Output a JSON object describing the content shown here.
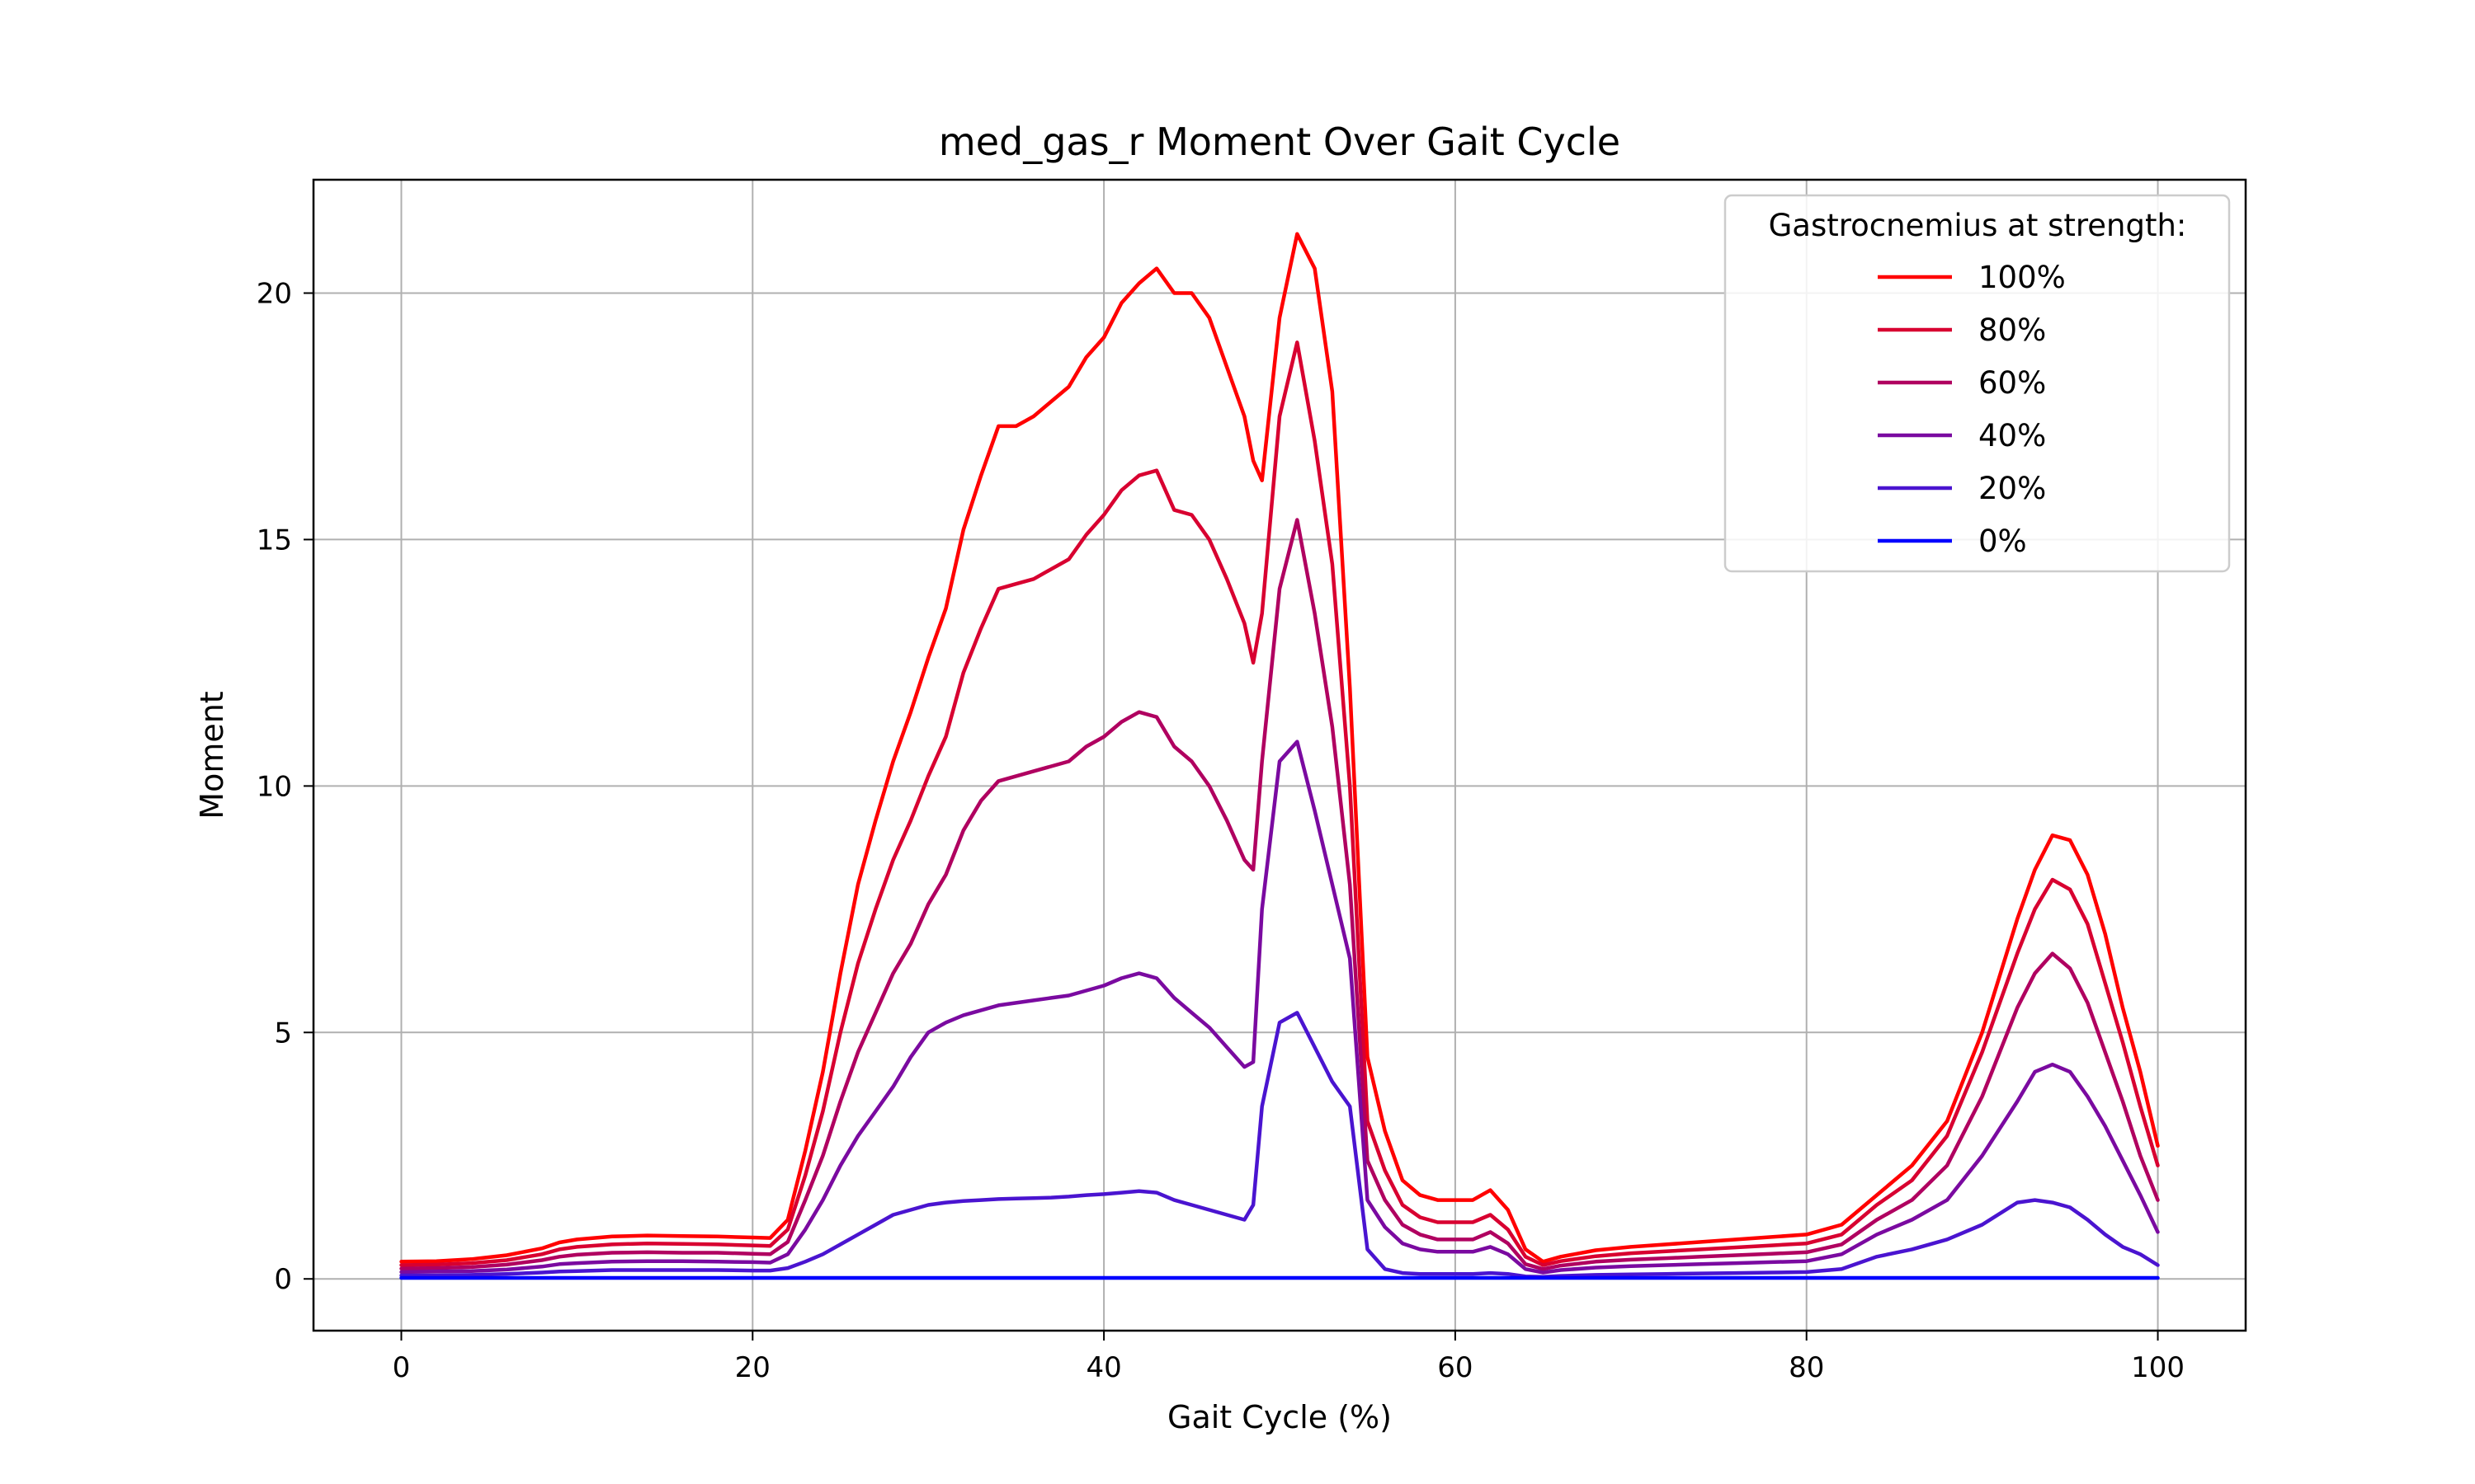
{
  "chart_data": {
    "type": "line",
    "title": "med_gas_r Moment Over Gait Cycle",
    "xlabel": "Gait Cycle (%)",
    "ylabel": "Moment",
    "xlim": [
      -5,
      105
    ],
    "ylim": [
      -1.05,
      22.3
    ],
    "xticks": [
      0,
      20,
      40,
      60,
      80,
      100
    ],
    "yticks": [
      0,
      5,
      10,
      15,
      20
    ],
    "grid": true,
    "legend": {
      "title": "Gastrocnemius at strength:",
      "placement": "top-right"
    },
    "x": [
      0,
      2,
      4,
      6,
      8,
      9,
      10,
      12,
      14,
      16,
      18,
      20,
      21,
      22,
      23,
      24,
      25,
      26,
      27,
      28,
      29,
      30,
      31,
      32,
      33,
      34,
      35,
      36,
      37,
      38,
      39,
      40,
      41,
      42,
      43,
      44,
      45,
      46,
      47,
      48,
      48.5,
      49,
      50,
      51,
      52,
      53,
      54,
      55,
      56,
      57,
      58,
      59,
      60,
      61,
      62,
      63,
      64,
      65,
      66,
      68,
      70,
      72,
      74,
      76,
      78,
      80,
      82,
      84,
      86,
      88,
      90,
      92,
      93,
      94,
      95,
      96,
      97,
      98,
      99,
      100
    ],
    "series": [
      {
        "name": "100%",
        "color": "#ff0000",
        "values": [
          0.35,
          0.36,
          0.4,
          0.48,
          0.62,
          0.74,
          0.8,
          0.86,
          0.88,
          0.87,
          0.86,
          0.84,
          0.83,
          1.2,
          2.6,
          4.2,
          6.2,
          8.0,
          9.3,
          10.5,
          11.5,
          12.6,
          13.6,
          15.2,
          16.3,
          17.3,
          17.3,
          17.5,
          17.8,
          18.1,
          18.7,
          19.1,
          19.8,
          20.2,
          20.5,
          20.0,
          20.0,
          19.5,
          18.5,
          17.5,
          16.6,
          16.2,
          19.5,
          21.2,
          20.5,
          18.0,
          12.0,
          4.5,
          3.0,
          2.0,
          1.7,
          1.6,
          1.6,
          1.6,
          1.8,
          1.4,
          0.6,
          0.35,
          0.45,
          0.58,
          0.65,
          0.7,
          0.75,
          0.8,
          0.85,
          0.9,
          1.1,
          1.7,
          2.3,
          3.2,
          5.0,
          7.3,
          8.3,
          9.0,
          8.9,
          8.2,
          7.0,
          5.5,
          4.2,
          2.7
        ]
      },
      {
        "name": "80%",
        "color": "#d80030",
        "values": [
          0.28,
          0.29,
          0.32,
          0.38,
          0.5,
          0.6,
          0.65,
          0.7,
          0.72,
          0.71,
          0.7,
          0.68,
          0.67,
          1.0,
          2.1,
          3.4,
          5.0,
          6.4,
          7.5,
          8.5,
          9.3,
          10.2,
          11.0,
          12.3,
          13.2,
          14.0,
          14.1,
          14.2,
          14.4,
          14.6,
          15.1,
          15.5,
          16.0,
          16.3,
          16.4,
          15.6,
          15.5,
          15.0,
          14.2,
          13.3,
          12.5,
          13.5,
          17.5,
          19.0,
          17.0,
          14.5,
          10.0,
          3.2,
          2.2,
          1.5,
          1.25,
          1.15,
          1.15,
          1.15,
          1.3,
          1.0,
          0.45,
          0.28,
          0.36,
          0.46,
          0.52,
          0.56,
          0.6,
          0.64,
          0.68,
          0.72,
          0.9,
          1.5,
          2.0,
          2.9,
          4.6,
          6.6,
          7.5,
          8.1,
          7.9,
          7.2,
          6.0,
          4.8,
          3.5,
          2.3
        ]
      },
      {
        "name": "60%",
        "color": "#b00060",
        "values": [
          0.21,
          0.22,
          0.24,
          0.29,
          0.38,
          0.45,
          0.49,
          0.53,
          0.54,
          0.53,
          0.53,
          0.51,
          0.5,
          0.75,
          1.6,
          2.5,
          3.6,
          4.6,
          5.4,
          6.2,
          6.8,
          7.6,
          8.2,
          9.1,
          9.7,
          10.1,
          10.2,
          10.3,
          10.4,
          10.5,
          10.8,
          11.0,
          11.3,
          11.5,
          11.4,
          10.8,
          10.5,
          10.0,
          9.3,
          8.5,
          8.3,
          10.5,
          14.0,
          15.4,
          13.5,
          11.2,
          8.0,
          2.4,
          1.6,
          1.1,
          0.9,
          0.8,
          0.8,
          0.8,
          0.95,
          0.72,
          0.3,
          0.2,
          0.27,
          0.35,
          0.39,
          0.42,
          0.45,
          0.48,
          0.51,
          0.54,
          0.7,
          1.2,
          1.6,
          2.3,
          3.7,
          5.5,
          6.2,
          6.6,
          6.3,
          5.6,
          4.6,
          3.6,
          2.5,
          1.6
        ]
      },
      {
        "name": "40%",
        "color": "#7a0aa0",
        "values": [
          0.14,
          0.15,
          0.16,
          0.19,
          0.25,
          0.3,
          0.32,
          0.35,
          0.36,
          0.36,
          0.35,
          0.34,
          0.33,
          0.5,
          1.0,
          1.6,
          2.3,
          2.9,
          3.4,
          3.9,
          4.5,
          5.0,
          5.2,
          5.35,
          5.45,
          5.55,
          5.6,
          5.65,
          5.7,
          5.75,
          5.85,
          5.95,
          6.1,
          6.2,
          6.1,
          5.7,
          5.4,
          5.1,
          4.7,
          4.3,
          4.4,
          7.5,
          10.5,
          10.9,
          9.5,
          8.0,
          6.5,
          1.6,
          1.05,
          0.72,
          0.6,
          0.55,
          0.55,
          0.55,
          0.65,
          0.5,
          0.2,
          0.13,
          0.18,
          0.23,
          0.26,
          0.28,
          0.3,
          0.32,
          0.34,
          0.36,
          0.5,
          0.9,
          1.2,
          1.6,
          2.5,
          3.6,
          4.2,
          4.35,
          4.2,
          3.7,
          3.1,
          2.4,
          1.7,
          0.95
        ]
      },
      {
        "name": "20%",
        "color": "#4a14d0",
        "values": [
          0.07,
          0.07,
          0.08,
          0.1,
          0.13,
          0.15,
          0.16,
          0.18,
          0.18,
          0.18,
          0.18,
          0.17,
          0.17,
          0.22,
          0.35,
          0.5,
          0.7,
          0.9,
          1.1,
          1.3,
          1.4,
          1.5,
          1.55,
          1.58,
          1.6,
          1.62,
          1.63,
          1.64,
          1.65,
          1.67,
          1.7,
          1.72,
          1.75,
          1.78,
          1.75,
          1.6,
          1.5,
          1.4,
          1.3,
          1.2,
          1.5,
          3.5,
          5.2,
          5.4,
          4.7,
          4.0,
          3.5,
          0.6,
          0.2,
          0.12,
          0.1,
          0.1,
          0.1,
          0.1,
          0.12,
          0.1,
          0.05,
          0.04,
          0.06,
          0.08,
          0.09,
          0.1,
          0.11,
          0.12,
          0.13,
          0.14,
          0.2,
          0.45,
          0.6,
          0.8,
          1.1,
          1.55,
          1.6,
          1.55,
          1.45,
          1.2,
          0.9,
          0.65,
          0.5,
          0.28
        ]
      },
      {
        "name": "0%",
        "color": "#0000ff",
        "values": [
          0.02,
          0.02,
          0.02,
          0.02,
          0.02,
          0.02,
          0.02,
          0.02,
          0.02,
          0.02,
          0.02,
          0.02,
          0.02,
          0.02,
          0.02,
          0.02,
          0.02,
          0.02,
          0.02,
          0.02,
          0.02,
          0.02,
          0.02,
          0.02,
          0.02,
          0.02,
          0.02,
          0.02,
          0.02,
          0.02,
          0.02,
          0.02,
          0.02,
          0.02,
          0.02,
          0.02,
          0.02,
          0.02,
          0.02,
          0.02,
          0.02,
          0.02,
          0.02,
          0.02,
          0.02,
          0.02,
          0.02,
          0.02,
          0.02,
          0.02,
          0.02,
          0.02,
          0.02,
          0.02,
          0.02,
          0.02,
          0.02,
          0.02,
          0.02,
          0.02,
          0.02,
          0.02,
          0.02,
          0.02,
          0.02,
          0.02,
          0.02,
          0.02,
          0.02,
          0.02,
          0.02,
          0.02,
          0.02,
          0.02,
          0.02,
          0.02,
          0.02,
          0.02,
          0.02,
          0.02
        ]
      }
    ]
  }
}
